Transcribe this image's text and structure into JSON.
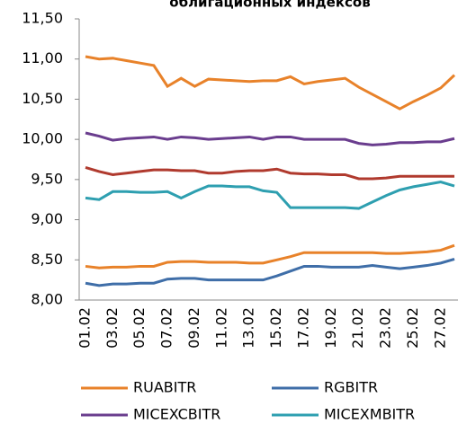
{
  "chart_data": {
    "type": "line",
    "title": "облигационных индексов",
    "categories": [
      "01.02",
      null,
      "03.02",
      null,
      "05.02",
      null,
      "07.02",
      null,
      "09.02",
      null,
      "11.02",
      null,
      "13.02",
      null,
      "15.02",
      null,
      "17.02",
      null,
      "19.02",
      null,
      "21.02",
      null,
      "23.02",
      null,
      "25.02",
      null,
      "27.02",
      null
    ],
    "ylim": [
      8.0,
      11.5
    ],
    "yticks": [
      {
        "value": 8.0,
        "label": "8,00"
      },
      {
        "value": 8.5,
        "label": "8,50"
      },
      {
        "value": 9.0,
        "label": "9,00"
      },
      {
        "value": 9.5,
        "label": "9,50"
      },
      {
        "value": 10.0,
        "label": "10,00"
      },
      {
        "value": 10.5,
        "label": "10,50"
      },
      {
        "value": 11.0,
        "label": "11,00"
      },
      {
        "value": 11.5,
        "label": "11,50"
      }
    ],
    "grid": false,
    "series": [
      {
        "name": "RUABITR",
        "color": "#e8822a",
        "values": [
          11.03,
          11.0,
          11.01,
          10.98,
          10.95,
          10.92,
          10.66,
          10.76,
          10.66,
          10.75,
          10.74,
          10.73,
          10.72,
          10.73,
          10.73,
          10.78,
          10.69,
          10.72,
          10.74,
          10.76,
          10.65,
          10.56,
          10.47,
          10.38,
          10.47,
          10.55,
          10.64,
          10.8
        ]
      },
      {
        "name": "RGBITR",
        "color": "#3f6ea8",
        "values": [
          8.21,
          8.18,
          8.2,
          8.2,
          8.21,
          8.21,
          8.26,
          8.27,
          8.27,
          8.25,
          8.25,
          8.25,
          8.25,
          8.25,
          8.3,
          8.36,
          8.42,
          8.42,
          8.41,
          8.41,
          8.41,
          8.43,
          8.41,
          8.39,
          8.41,
          8.43,
          8.46,
          8.51
        ]
      },
      {
        "name": "MICEXCBITR",
        "color": "#6a3d8e",
        "values": [
          10.08,
          10.04,
          9.99,
          10.01,
          10.02,
          10.03,
          10.0,
          10.03,
          10.02,
          10.0,
          10.01,
          10.02,
          10.03,
          10.0,
          10.03,
          10.03,
          10.0,
          10.0,
          10.0,
          10.0,
          9.95,
          9.93,
          9.94,
          9.96,
          9.96,
          9.97,
          9.97,
          10.01
        ]
      },
      {
        "name": "MICEXMBITR",
        "color": "#2e9fb0",
        "values": [
          9.27,
          9.25,
          9.35,
          9.35,
          9.34,
          9.34,
          9.35,
          9.27,
          9.35,
          9.42,
          9.42,
          9.41,
          9.41,
          9.36,
          9.34,
          9.15,
          9.15,
          9.15,
          9.15,
          9.15,
          9.14,
          9.22,
          9.3,
          9.37,
          9.41,
          9.44,
          9.47,
          9.42
        ]
      },
      {
        "color": "#b03a2e",
        "values": [
          9.65,
          9.6,
          9.56,
          9.58,
          9.6,
          9.62,
          9.62,
          9.61,
          9.61,
          9.58,
          9.58,
          9.6,
          9.61,
          9.61,
          9.63,
          9.58,
          9.57,
          9.57,
          9.56,
          9.56,
          9.51,
          9.51,
          9.52,
          9.54,
          9.54,
          9.54,
          9.54,
          9.54
        ]
      },
      {
        "color": "#e8822a",
        "values": [
          8.42,
          8.4,
          8.41,
          8.41,
          8.42,
          8.42,
          8.47,
          8.48,
          8.48,
          8.47,
          8.47,
          8.47,
          8.46,
          8.46,
          8.5,
          8.54,
          8.59,
          8.59,
          8.59,
          8.59,
          8.59,
          8.59,
          8.58,
          8.58,
          8.59,
          8.6,
          8.62,
          8.68
        ]
      }
    ]
  }
}
